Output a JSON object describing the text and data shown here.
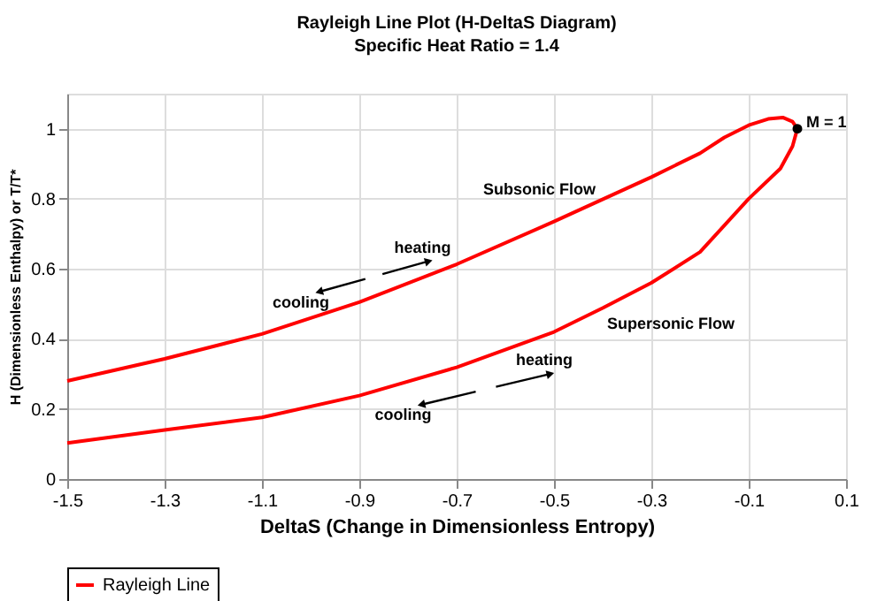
{
  "chart_data": {
    "type": "line",
    "title": "Rayleigh Line Plot (H-DeltaS Diagram)",
    "subtitle": "Specific Heat Ratio = 1.4",
    "xlabel": "DeltaS (Change in Dimensionless Entropy)",
    "ylabel": "H (Dimensionless Enthalpy) or T/T*",
    "xlim": [
      -1.5,
      0.1
    ],
    "xticks": [
      -1.5,
      -1.3,
      -1.1,
      -0.9,
      -0.7,
      -0.5,
      -0.3,
      -0.1,
      0.1
    ],
    "ylim": [
      0,
      1.1
    ],
    "yticks": [
      0,
      0.2,
      0.4,
      0.6,
      0.8,
      1
    ],
    "grid": true,
    "legend": "bottom",
    "marker": "none",
    "line_style": "solid",
    "series": [
      {
        "name": "Rayleigh Line",
        "type": "line",
        "color": "#ff0000",
        "x": [
          -1.5,
          -1.3,
          -1.1,
          -0.9,
          -0.7,
          -0.5,
          -0.3,
          -0.2,
          -0.15,
          -0.1,
          -0.06,
          -0.03,
          -0.01,
          0,
          -0.01,
          -0.035,
          -0.1,
          -0.2,
          -0.3,
          -0.4,
          -0.5,
          -0.7,
          -0.9,
          -1.1,
          -1.3,
          -1.5
        ],
        "values": [
          0.28,
          0.343,
          0.414,
          0.505,
          0.613,
          0.735,
          0.862,
          0.93,
          0.975,
          1.01,
          1.028,
          1.032,
          1.02,
          1.0,
          0.95,
          0.886,
          0.8,
          0.648,
          0.56,
          0.488,
          0.42,
          0.319,
          0.238,
          0.176,
          0.14,
          0.103
        ]
      },
      {
        "type": "scatter",
        "marker": "circle",
        "color": "#000000",
        "x": [
          0
        ],
        "values": [
          1.0
        ]
      }
    ],
    "annotations": [
      {
        "text": "Subsonic Flow",
        "x": -0.53,
        "y": 0.717
      },
      {
        "text": "heating",
        "x": -0.77,
        "y": 0.575
      },
      {
        "text": "cooling",
        "x": -1.02,
        "y": 0.45
      },
      {
        "text": "Supersonic Flow",
        "x": -0.26,
        "y": 0.595
      },
      {
        "text": "heating",
        "x": -0.52,
        "y": 0.41
      },
      {
        "text": "cooling",
        "x": -0.81,
        "y": 0.274
      },
      {
        "text": "M = 1",
        "x": 0,
        "y": 1.0
      }
    ]
  }
}
